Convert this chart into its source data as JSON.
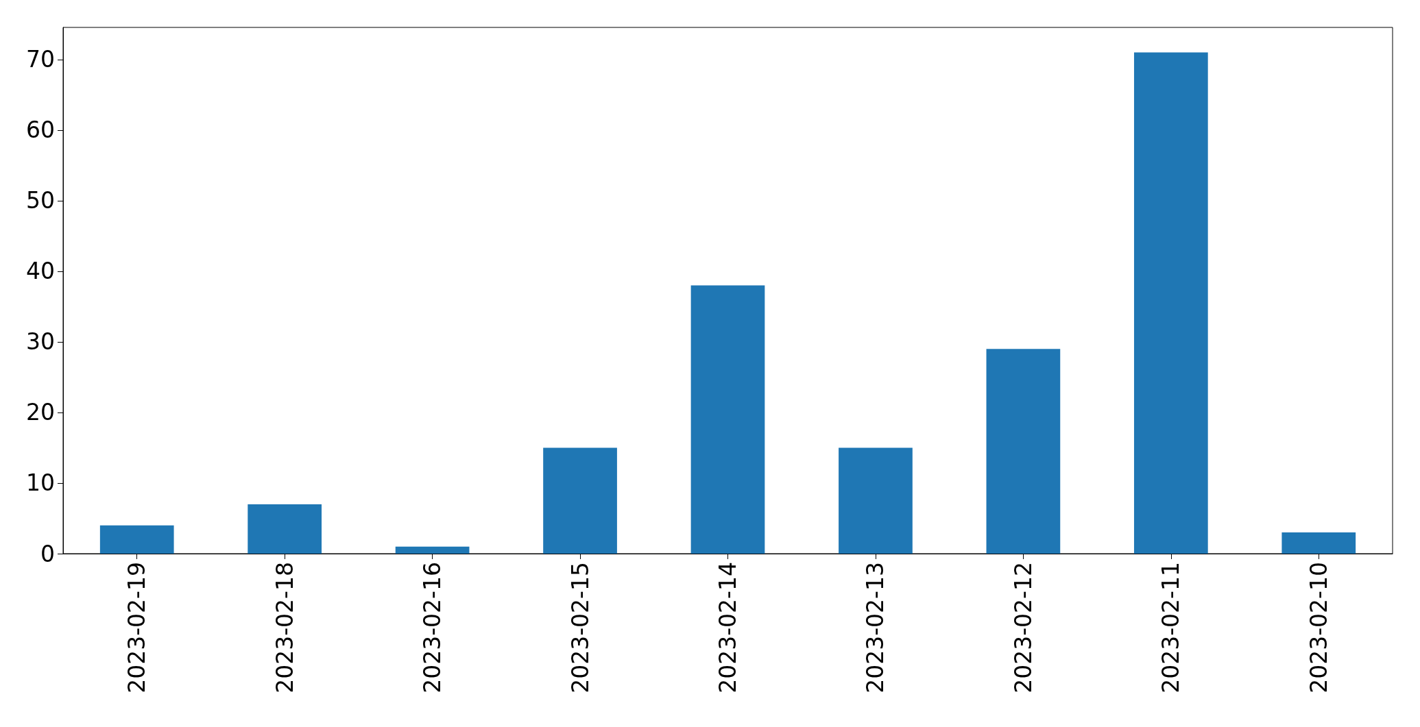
{
  "chart_data": {
    "type": "bar",
    "categories": [
      "2023-02-19",
      "2023-02-18",
      "2023-02-16",
      "2023-02-15",
      "2023-02-14",
      "2023-02-13",
      "2023-02-12",
      "2023-02-11",
      "2023-02-10"
    ],
    "values": [
      4,
      7,
      1,
      15,
      38,
      15,
      29,
      71,
      3
    ],
    "color": "#1f77b4",
    "ylim": [
      0,
      74.55
    ],
    "yticks": [
      0,
      10,
      20,
      30,
      40,
      50,
      60,
      70
    ],
    "grid": false
  }
}
